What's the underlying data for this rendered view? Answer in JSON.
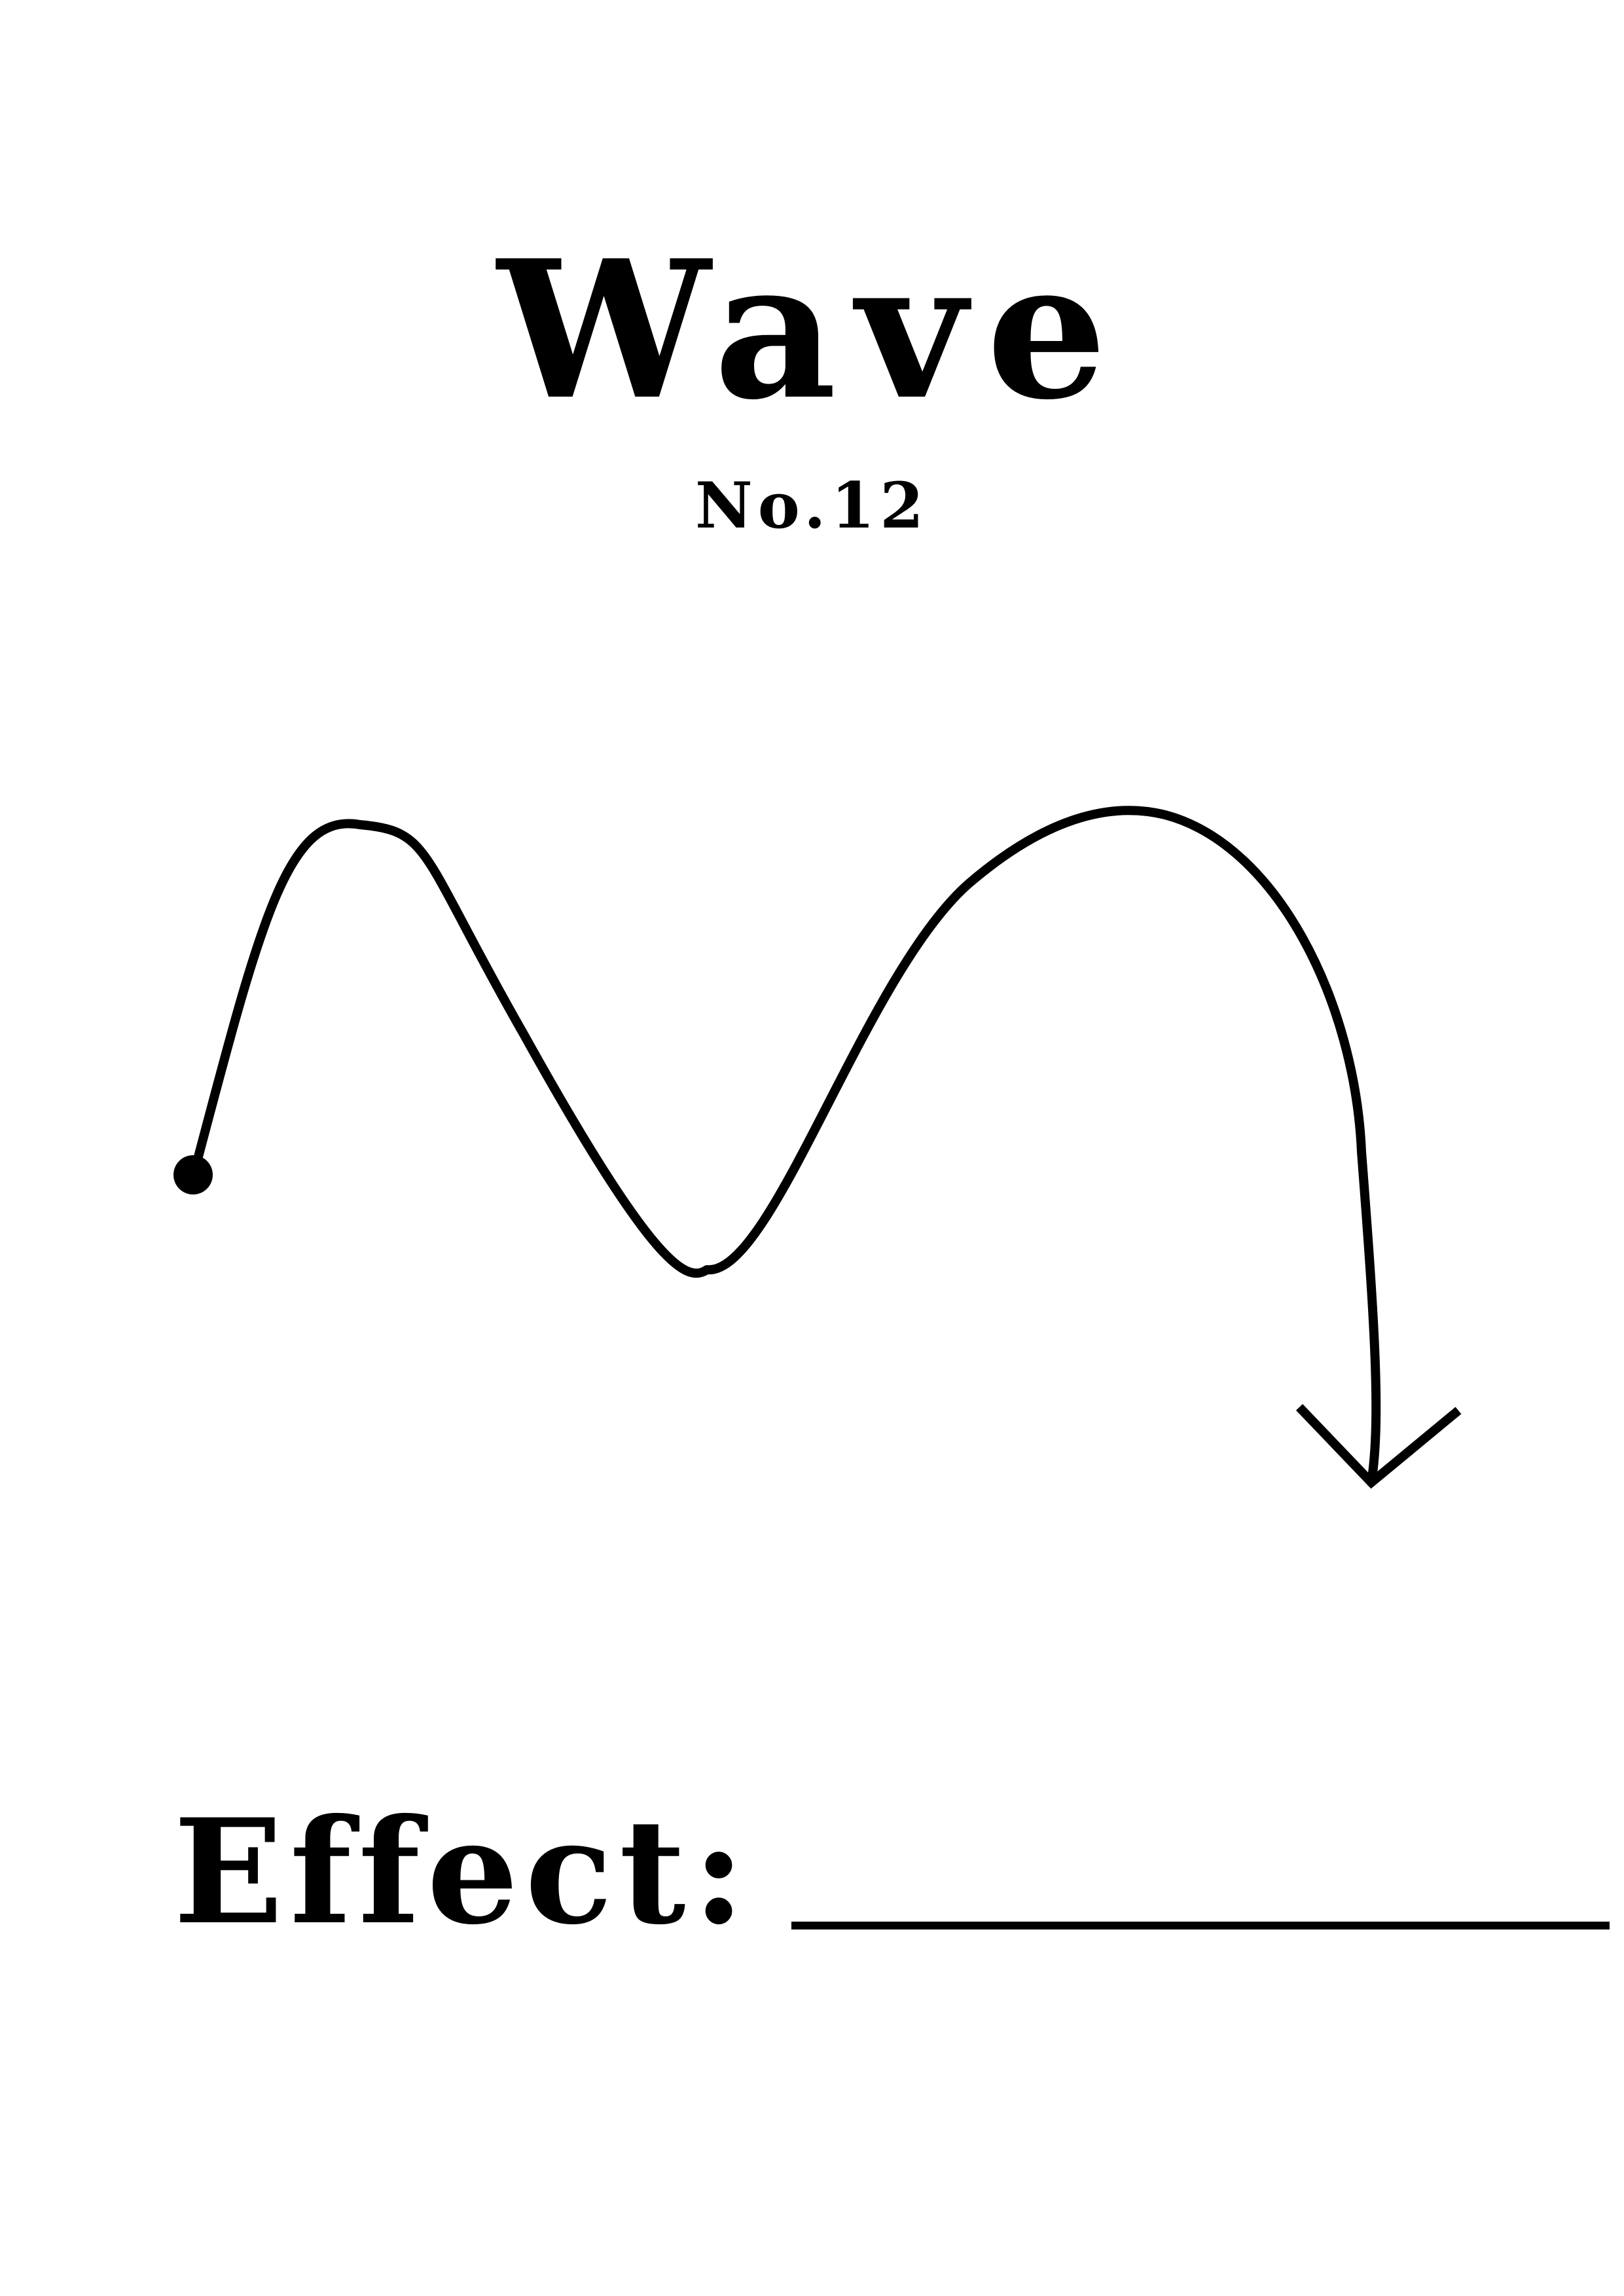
{
  "title": "Wave",
  "subtitle": "No.12",
  "effect_label": "Effect:",
  "colors": {
    "ink": "#000000",
    "paper": "#ffffff"
  },
  "icons": {
    "start": "start-dot",
    "end": "arrowhead"
  }
}
